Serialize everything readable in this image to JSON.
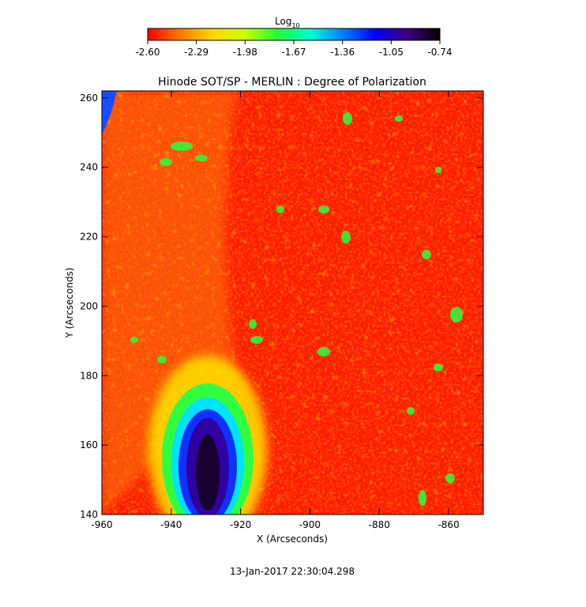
{
  "colorbar": {
    "label": "Log",
    "label_sub": "10",
    "ticks": [
      "-2.60",
      "-2.29",
      "-1.98",
      "-1.67",
      "-1.36",
      "-1.05",
      "-0.74"
    ],
    "colors": [
      "#ff0000",
      "#ff7a00",
      "#ffd800",
      "#c8ff00",
      "#20ff30",
      "#00ffd0",
      "#0080ff",
      "#0000ff",
      "#400080",
      "#000000"
    ]
  },
  "chart_data": {
    "type": "heatmap",
    "title": "Hinode SOT/SP - MERLIN : Degree of Polarization",
    "xlabel": "X (Arcseconds)",
    "ylabel": "Y (Arcseconds)",
    "xlim": [
      -960,
      -850
    ],
    "ylim": [
      140,
      262
    ],
    "xticks": [
      "-960",
      "-940",
      "-920",
      "-900",
      "-880",
      "-860"
    ],
    "xtick_values": [
      -960,
      -940,
      -920,
      -900,
      -880,
      -860
    ],
    "yticks": [
      "140",
      "160",
      "180",
      "200",
      "220",
      "240",
      "260"
    ],
    "ytick_values": [
      140,
      160,
      180,
      200,
      220,
      240,
      260
    ],
    "value_range": [
      -2.6,
      -0.74
    ],
    "features": [
      {
        "name": "polarization core",
        "x": -929,
        "y": 152,
        "value": -0.8
      },
      {
        "name": "top-left edge",
        "x": -958,
        "y": 255,
        "value": -1.2
      }
    ],
    "timestamp": "13-Jan-2017 22:30:04.298"
  }
}
